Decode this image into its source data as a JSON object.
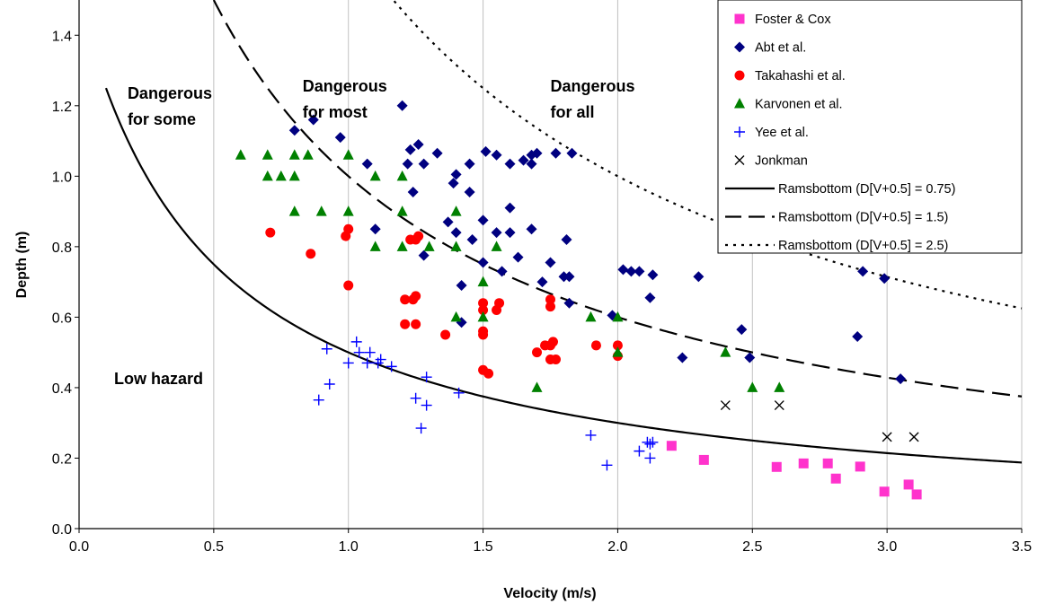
{
  "chart_data": {
    "type": "scatter",
    "xlabel": "Velocity (m/s)",
    "ylabel": "Depth (m)",
    "xlim": [
      0,
      3.5
    ],
    "ylim": [
      0,
      1.5
    ],
    "x_ticks": [
      "0.0",
      "0.5",
      "1.0",
      "1.5",
      "2.0",
      "2.5",
      "3.0",
      "3.5"
    ],
    "y_ticks": [
      "0.0",
      "0.2",
      "0.4",
      "0.6",
      "0.8",
      "1.0",
      "1.2",
      "1.4"
    ],
    "grid": "vertical",
    "legend_position": "top-right",
    "annotations": [
      {
        "lines": [
          "Dangerous",
          "for some"
        ],
        "x": 0.18,
        "y": 1.22
      },
      {
        "lines": [
          "Dangerous",
          "for most"
        ],
        "x": 0.83,
        "y": 1.24
      },
      {
        "lines": [
          "Dangerous",
          "for all"
        ],
        "x": 1.75,
        "y": 1.24
      },
      {
        "lines": [
          "Low hazard"
        ],
        "x": 0.13,
        "y": 0.41
      }
    ],
    "series": [
      {
        "name": "Foster & Cox",
        "marker": "square",
        "color": "#ff33cc",
        "points": [
          [
            2.2,
            0.235
          ],
          [
            2.32,
            0.195
          ],
          [
            2.59,
            0.175
          ],
          [
            2.69,
            0.185
          ],
          [
            2.78,
            0.185
          ],
          [
            2.81,
            0.142
          ],
          [
            2.9,
            0.176
          ],
          [
            2.99,
            0.105
          ],
          [
            3.08,
            0.125
          ],
          [
            3.11,
            0.097
          ]
        ]
      },
      {
        "name": "Abt et al.",
        "marker": "diamond",
        "color": "#000080",
        "points": [
          [
            0.8,
            1.13
          ],
          [
            0.87,
            1.16
          ],
          [
            0.97,
            1.11
          ],
          [
            1.07,
            1.035
          ],
          [
            1.1,
            0.85
          ],
          [
            1.2,
            1.2
          ],
          [
            1.22,
            1.035
          ],
          [
            1.23,
            1.075
          ],
          [
            1.24,
            0.955
          ],
          [
            1.26,
            1.09
          ],
          [
            1.28,
            1.035
          ],
          [
            1.28,
            0.775
          ],
          [
            1.33,
            1.065
          ],
          [
            1.37,
            0.87
          ],
          [
            1.39,
            0.98
          ],
          [
            1.4,
            1.005
          ],
          [
            1.4,
            0.84
          ],
          [
            1.42,
            0.69
          ],
          [
            1.42,
            0.585
          ],
          [
            1.45,
            1.035
          ],
          [
            1.45,
            0.955
          ],
          [
            1.46,
            0.82
          ],
          [
            1.5,
            0.875
          ],
          [
            1.5,
            0.755
          ],
          [
            1.51,
            1.07
          ],
          [
            1.55,
            0.84
          ],
          [
            1.55,
            1.06
          ],
          [
            1.57,
            0.73
          ],
          [
            1.6,
            1.035
          ],
          [
            1.6,
            0.84
          ],
          [
            1.6,
            0.91
          ],
          [
            1.63,
            0.77
          ],
          [
            1.65,
            1.045
          ],
          [
            1.68,
            1.035
          ],
          [
            1.68,
            1.06
          ],
          [
            1.68,
            0.85
          ],
          [
            1.7,
            1.065
          ],
          [
            1.72,
            0.7
          ],
          [
            1.75,
            0.755
          ],
          [
            1.77,
            1.065
          ],
          [
            1.8,
            0.715
          ],
          [
            1.82,
            0.715
          ],
          [
            1.83,
            1.065
          ],
          [
            1.82,
            0.64
          ],
          [
            1.81,
            0.82
          ],
          [
            1.98,
            0.605
          ],
          [
            2.02,
            0.735
          ],
          [
            2.05,
            0.73
          ],
          [
            2.08,
            0.73
          ],
          [
            2.12,
            0.655
          ],
          [
            2.13,
            0.72
          ],
          [
            2.24,
            0.485
          ],
          [
            2.3,
            0.715
          ],
          [
            2.46,
            0.565
          ],
          [
            2.49,
            0.485
          ],
          [
            2.89,
            0.545
          ],
          [
            2.91,
            0.73
          ],
          [
            2.99,
            0.71
          ],
          [
            3.05,
            0.425
          ]
        ]
      },
      {
        "name": "Takahashi et al.",
        "marker": "circle",
        "color": "#ff0000",
        "points": [
          [
            0.71,
            0.84
          ],
          [
            0.86,
            0.78
          ],
          [
            0.99,
            0.83
          ],
          [
            1.0,
            0.85
          ],
          [
            1.0,
            0.69
          ],
          [
            1.21,
            0.65
          ],
          [
            1.21,
            0.58
          ],
          [
            1.23,
            0.82
          ],
          [
            1.24,
            0.65
          ],
          [
            1.25,
            0.82
          ],
          [
            1.25,
            0.66
          ],
          [
            1.25,
            0.58
          ],
          [
            1.26,
            0.83
          ],
          [
            1.36,
            0.55
          ],
          [
            1.5,
            0.64
          ],
          [
            1.5,
            0.62
          ],
          [
            1.5,
            0.56
          ],
          [
            1.5,
            0.55
          ],
          [
            1.5,
            0.45
          ],
          [
            1.52,
            0.44
          ],
          [
            1.55,
            0.62
          ],
          [
            1.56,
            0.64
          ],
          [
            1.75,
            0.65
          ],
          [
            1.75,
            0.63
          ],
          [
            1.75,
            0.52
          ],
          [
            1.75,
            0.48
          ],
          [
            1.77,
            0.48
          ],
          [
            1.7,
            0.5
          ],
          [
            1.73,
            0.52
          ],
          [
            1.76,
            0.53
          ],
          [
            1.92,
            0.52
          ],
          [
            2.0,
            0.52
          ],
          [
            2.0,
            0.49
          ]
        ]
      },
      {
        "name": "Karvonen et al.",
        "marker": "triangle",
        "color": "#008000",
        "points": [
          [
            0.6,
            1.06
          ],
          [
            0.7,
            1.06
          ],
          [
            0.8,
            1.06
          ],
          [
            0.85,
            1.06
          ],
          [
            1.0,
            1.06
          ],
          [
            0.7,
            1.0
          ],
          [
            0.75,
            1.0
          ],
          [
            0.8,
            1.0
          ],
          [
            1.1,
            1.0
          ],
          [
            1.2,
            1.0
          ],
          [
            0.8,
            0.9
          ],
          [
            0.9,
            0.9
          ],
          [
            1.0,
            0.9
          ],
          [
            1.2,
            0.9
          ],
          [
            1.4,
            0.9
          ],
          [
            1.1,
            0.8
          ],
          [
            1.2,
            0.8
          ],
          [
            1.3,
            0.8
          ],
          [
            1.4,
            0.8
          ],
          [
            1.55,
            0.8
          ],
          [
            1.5,
            0.7
          ],
          [
            1.4,
            0.6
          ],
          [
            1.5,
            0.6
          ],
          [
            1.9,
            0.6
          ],
          [
            2.0,
            0.6
          ],
          [
            1.7,
            0.4
          ],
          [
            2.0,
            0.5
          ],
          [
            2.4,
            0.5
          ],
          [
            2.5,
            0.4
          ],
          [
            2.6,
            0.4
          ]
        ]
      },
      {
        "name": "Yee et al.",
        "marker": "plus",
        "color": "#0000ff",
        "points": [
          [
            0.89,
            0.365
          ],
          [
            0.93,
            0.41
          ],
          [
            0.92,
            0.51
          ],
          [
            1.0,
            0.47
          ],
          [
            1.03,
            0.53
          ],
          [
            1.04,
            0.5
          ],
          [
            1.07,
            0.47
          ],
          [
            1.08,
            0.5
          ],
          [
            1.11,
            0.47
          ],
          [
            1.12,
            0.48
          ],
          [
            1.16,
            0.46
          ],
          [
            1.25,
            0.37
          ],
          [
            1.27,
            0.285
          ],
          [
            1.29,
            0.43
          ],
          [
            1.29,
            0.35
          ],
          [
            1.41,
            0.385
          ],
          [
            1.9,
            0.265
          ],
          [
            1.96,
            0.18
          ],
          [
            2.08,
            0.22
          ],
          [
            2.11,
            0.245
          ],
          [
            2.12,
            0.24
          ],
          [
            2.12,
            0.2
          ],
          [
            2.13,
            0.245
          ]
        ]
      },
      {
        "name": "Jonkman",
        "marker": "cross",
        "color": "#000000",
        "points": [
          [
            2.4,
            0.35
          ],
          [
            2.6,
            0.35
          ],
          [
            3.0,
            0.26
          ],
          [
            3.1,
            0.26
          ]
        ]
      }
    ],
    "curves": [
      {
        "name": "Ramsbottom (D[V+0.5] = 0.75)",
        "dash": "solid",
        "constant": 0.75,
        "x_from": 0.1
      },
      {
        "name": "Ramsbottom (D[V+0.5] = 1.5)",
        "dash": "dashed",
        "constant": 1.5,
        "x_from": 0.5
      },
      {
        "name": "Ramsbottom (D[V+0.5] = 2.5)",
        "dash": "dotted",
        "constant": 2.5,
        "x_from": 1.17
      }
    ]
  }
}
